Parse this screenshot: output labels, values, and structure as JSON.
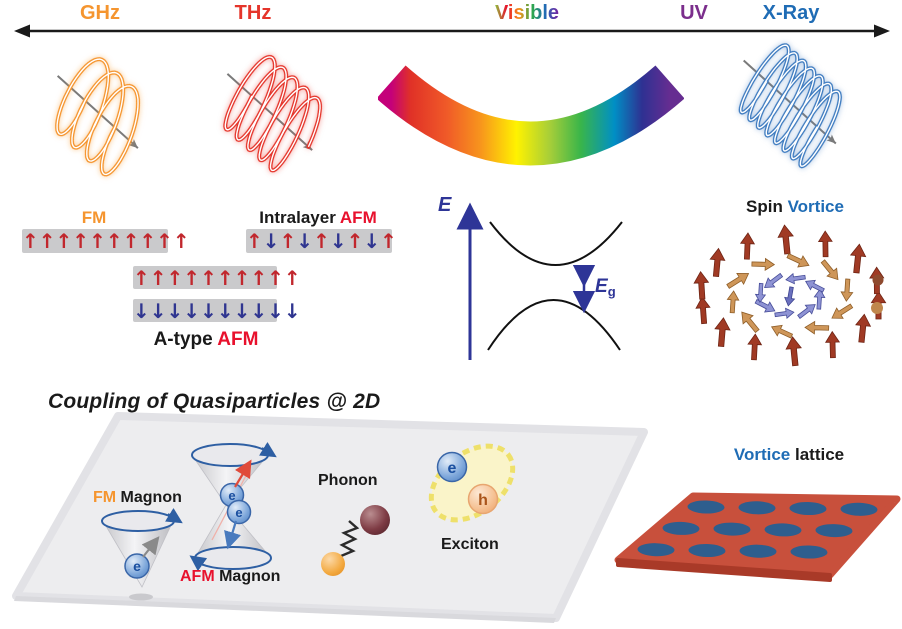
{
  "colors": {
    "black": "#1a1a1a",
    "ghz_orange": "#F5952F",
    "thz_red": "#E5352B",
    "uv_purple": "#7B2E8C",
    "xray_blue": "#1F6CB5",
    "accent_red": "#E8112D",
    "spin_up": "#C1272D",
    "spin_down": "#2F3590",
    "bar_gray": "#CACACC",
    "axis_blue": "#2E3597",
    "vortice_blue": "#1F6CB5",
    "panel_gray": "#EDEDEF",
    "plate_red": "#C8503C",
    "lattice_dot": "#2E5E8E",
    "vortex_outer": "#A03A24",
    "vortex_middle": "#CE9659",
    "vortex_inner": "#6A70BE"
  },
  "glyphs": {
    "up_arrow": "↑",
    "down_arrow": "↓"
  },
  "spectrum": {
    "bands": [
      {
        "label": "GHz"
      },
      {
        "label": "THz"
      },
      {
        "label": "Visible"
      },
      {
        "label": "UV"
      },
      {
        "label": "X-Ray"
      }
    ]
  },
  "magnetism": {
    "fm": {
      "label": "FM",
      "pattern": [
        "u",
        "u",
        "u",
        "u",
        "u",
        "u",
        "u",
        "u",
        "u",
        "u"
      ]
    },
    "intralayer": {
      "label_prefix": "Intralayer ",
      "label_accent": "AFM",
      "pattern": [
        "u",
        "d",
        "u",
        "d",
        "u",
        "d",
        "u",
        "d",
        "u"
      ]
    },
    "atype": {
      "label_prefix": "A-type ",
      "label_accent": "AFM",
      "pattern_top": [
        "u",
        "u",
        "u",
        "u",
        "u",
        "u",
        "u",
        "u",
        "u",
        "u"
      ],
      "pattern_bottom": [
        "d",
        "d",
        "d",
        "d",
        "d",
        "d",
        "d",
        "d",
        "d",
        "d"
      ]
    }
  },
  "band_diagram": {
    "axis_label": "E",
    "gap_symbol": "E",
    "gap_subscript": "g"
  },
  "spin_vortex": {
    "label_prefix": "Spin ",
    "label_accent": "Vortice"
  },
  "quasiparticles": {
    "title": "Coupling of Quasiparticles @ 2D",
    "fm_magnon": {
      "accent": "FM",
      "rest": " Magnon"
    },
    "afm_magnon": {
      "accent": "AFM",
      "rest": " Magnon"
    },
    "phonon_label": "Phonon",
    "exciton_label": "Exciton",
    "electron_symbol": "e",
    "hole_symbol": "h"
  },
  "vortice_lattice": {
    "label_accent": "Vortice",
    "label_rest": " lattice",
    "rows": 3,
    "cols": 4
  }
}
